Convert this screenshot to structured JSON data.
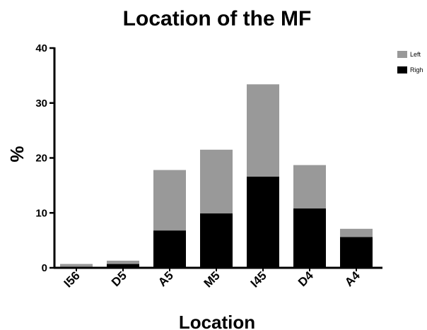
{
  "chart_data": {
    "type": "bar",
    "stacked": true,
    "title": "Location of the MF",
    "xlabel": "Location",
    "ylabel": "%",
    "ylim": [
      0,
      40
    ],
    "yticks": [
      0,
      10,
      20,
      30,
      40
    ],
    "categories": [
      "I56",
      "D5",
      "A5",
      "M5",
      "I45",
      "D4",
      "A4"
    ],
    "series": [
      {
        "name": "Righ",
        "color": "#000000",
        "values": [
          0.2,
          0.7,
          6.8,
          9.9,
          16.6,
          10.8,
          5.6
        ]
      },
      {
        "name": "Left",
        "color": "#999999",
        "values": [
          0.5,
          0.6,
          11.0,
          11.6,
          16.8,
          7.9,
          1.5
        ]
      }
    ],
    "legend": [
      {
        "name": "Left",
        "color": "#999999"
      },
      {
        "name": "Righ",
        "color": "#000000"
      }
    ],
    "legend_position": "top-right",
    "grid": false
  }
}
